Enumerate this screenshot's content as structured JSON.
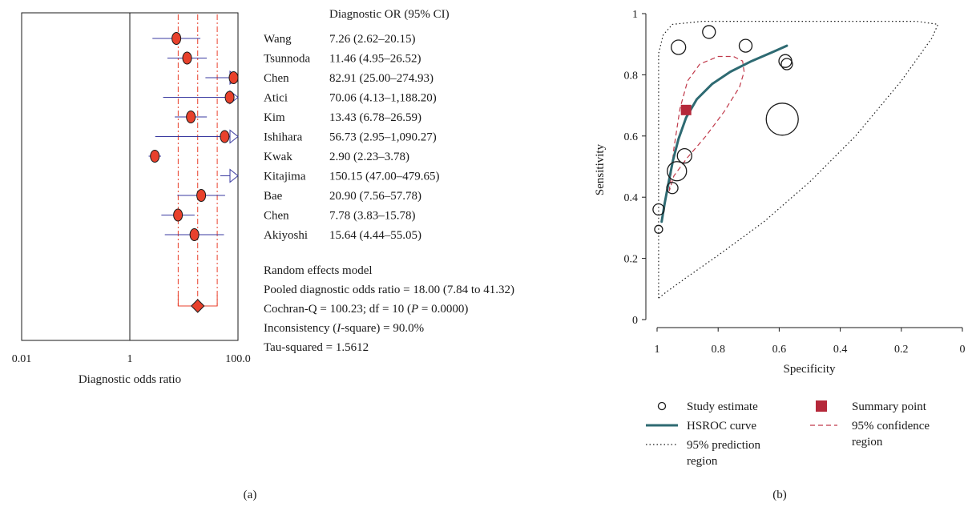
{
  "chart_data": [
    {
      "type": "forest",
      "xlabel": "Diagnostic odds ratio",
      "x_scale": "log10",
      "xlim": [
        0.01,
        100
      ],
      "ticks": [
        "0.01",
        "1",
        "100.0"
      ],
      "tick_values": [
        0.01,
        1,
        100
      ],
      "column_header": "Diagnostic OR (95% CI)",
      "studies": [
        {
          "name": "Wang",
          "or": 7.26,
          "lo": 2.62,
          "hi": 20.15,
          "label": "7.26 (2.62–20.15)"
        },
        {
          "name": "Tsunnoda",
          "or": 11.46,
          "lo": 4.95,
          "hi": 26.52,
          "label": "11.46 (4.95–26.52)"
        },
        {
          "name": "Chen",
          "or": 82.91,
          "lo": 25.0,
          "hi": 274.93,
          "label": "82.91 (25.00–274.93)"
        },
        {
          "name": "Atici",
          "or": 70.06,
          "lo": 4.13,
          "hi": 1188.2,
          "label": "70.06 (4.13–1,188.20)"
        },
        {
          "name": "Kim",
          "or": 13.43,
          "lo": 6.78,
          "hi": 26.59,
          "label": "13.43 (6.78–26.59)"
        },
        {
          "name": "Ishihara",
          "or": 56.73,
          "lo": 2.95,
          "hi": 1090.27,
          "label": "56.73 (2.95–1,090.27)"
        },
        {
          "name": "Kwak",
          "or": 2.9,
          "lo": 2.23,
          "hi": 3.78,
          "label": "2.90 (2.23–3.78)"
        },
        {
          "name": "Kitajima",
          "or": 150.15,
          "lo": 47.0,
          "hi": 479.65,
          "label": "150.15 (47.00–479.65)"
        },
        {
          "name": "Bae",
          "or": 20.9,
          "lo": 7.56,
          "hi": 57.78,
          "label": "20.90 (7.56–57.78)"
        },
        {
          "name": "Chen",
          "or": 7.78,
          "lo": 3.83,
          "hi": 15.78,
          "label": "7.78 (3.83–15.78)"
        },
        {
          "name": "Akiyoshi",
          "or": 15.64,
          "lo": 4.44,
          "hi": 55.05,
          "label": "15.64 (4.44–55.05)"
        }
      ],
      "pooled": {
        "or": 18.0,
        "lo": 7.84,
        "hi": 41.32
      },
      "summary_lines": [
        "Random effects model",
        "Pooled diagnostic odds ratio = 18.00 (7.84 to 41.32)",
        "Cochran-Q = 100.23; df = 10 (P = 0.0000)",
        "Inconsistency (I-square) = 90.0%",
        "Tau-squared = 1.5612"
      ],
      "colors": {
        "point": "#e8412c",
        "ci": "#3a3aa0",
        "pooled_line": "#e8412c"
      },
      "panel_label": "(a)"
    },
    {
      "type": "scatter",
      "xlabel": "Specificity",
      "ylabel": "Sensitivity",
      "xlim": [
        1,
        0
      ],
      "ylim": [
        0,
        1
      ],
      "x_ticks": [
        "1",
        "0.8",
        "0.6",
        "0.4",
        "0.2",
        "0"
      ],
      "y_ticks": [
        "0",
        "0.2",
        "0.4",
        "0.6",
        "0.8",
        "1"
      ],
      "study_estimates": [
        {
          "spec": 0.83,
          "sens": 0.94,
          "size": 8
        },
        {
          "spec": 0.93,
          "sens": 0.89,
          "size": 9
        },
        {
          "spec": 0.71,
          "sens": 0.895,
          "size": 8
        },
        {
          "spec": 0.58,
          "sens": 0.845,
          "size": 8
        },
        {
          "spec": 0.575,
          "sens": 0.835,
          "size": 7
        },
        {
          "spec": 0.59,
          "sens": 0.655,
          "size": 20
        },
        {
          "spec": 0.91,
          "sens": 0.535,
          "size": 9
        },
        {
          "spec": 0.935,
          "sens": 0.485,
          "size": 12
        },
        {
          "spec": 0.95,
          "sens": 0.43,
          "size": 7
        },
        {
          "spec": 0.995,
          "sens": 0.36,
          "size": 7
        },
        {
          "spec": 0.995,
          "sens": 0.295,
          "size": 5
        }
      ],
      "summary_point": {
        "spec": 0.905,
        "sens": 0.685
      },
      "hsroc_curve": [
        [
          0.985,
          0.32
        ],
        [
          0.975,
          0.38
        ],
        [
          0.962,
          0.45
        ],
        [
          0.948,
          0.52
        ],
        [
          0.93,
          0.59
        ],
        [
          0.905,
          0.66
        ],
        [
          0.87,
          0.72
        ],
        [
          0.82,
          0.77
        ],
        [
          0.76,
          0.81
        ],
        [
          0.69,
          0.845
        ],
        [
          0.62,
          0.875
        ],
        [
          0.575,
          0.895
        ]
      ],
      "confidence_region": [
        [
          0.96,
          0.42
        ],
        [
          0.945,
          0.56
        ],
        [
          0.925,
          0.69
        ],
        [
          0.9,
          0.78
        ],
        [
          0.86,
          0.835
        ],
        [
          0.8,
          0.86
        ],
        [
          0.75,
          0.86
        ],
        [
          0.72,
          0.845
        ],
        [
          0.715,
          0.81
        ],
        [
          0.73,
          0.76
        ],
        [
          0.78,
          0.68
        ],
        [
          0.84,
          0.6
        ],
        [
          0.9,
          0.53
        ],
        [
          0.945,
          0.47
        ],
        [
          0.96,
          0.42
        ]
      ],
      "prediction_region": [
        [
          0.995,
          0.07
        ],
        [
          0.995,
          0.6
        ],
        [
          0.995,
          0.87
        ],
        [
          0.98,
          0.93
        ],
        [
          0.95,
          0.965
        ],
        [
          0.85,
          0.975
        ],
        [
          0.6,
          0.975
        ],
        [
          0.35,
          0.975
        ],
        [
          0.15,
          0.975
        ],
        [
          0.08,
          0.965
        ],
        [
          0.1,
          0.92
        ],
        [
          0.2,
          0.78
        ],
        [
          0.35,
          0.6
        ],
        [
          0.5,
          0.45
        ],
        [
          0.65,
          0.32
        ],
        [
          0.8,
          0.21
        ],
        [
          0.9,
          0.14
        ],
        [
          0.97,
          0.09
        ],
        [
          0.995,
          0.07
        ]
      ],
      "legend": [
        {
          "symbol": "open-circle",
          "label": "Study estimate"
        },
        {
          "symbol": "filled-square",
          "label": "Summary point"
        },
        {
          "symbol": "solid-line",
          "label": "HSROC curve"
        },
        {
          "symbol": "dashed-line",
          "label_lines": [
            "95% confidence",
            "region"
          ]
        },
        {
          "symbol": "dotted-line",
          "label_lines": [
            "95% prediction",
            "region"
          ]
        }
      ],
      "colors": {
        "hsroc": "#2e6a72",
        "summary": "#b5283a",
        "confidence": "#c0394a",
        "prediction": "#1a1a1a"
      },
      "panel_label": "(b)"
    }
  ]
}
